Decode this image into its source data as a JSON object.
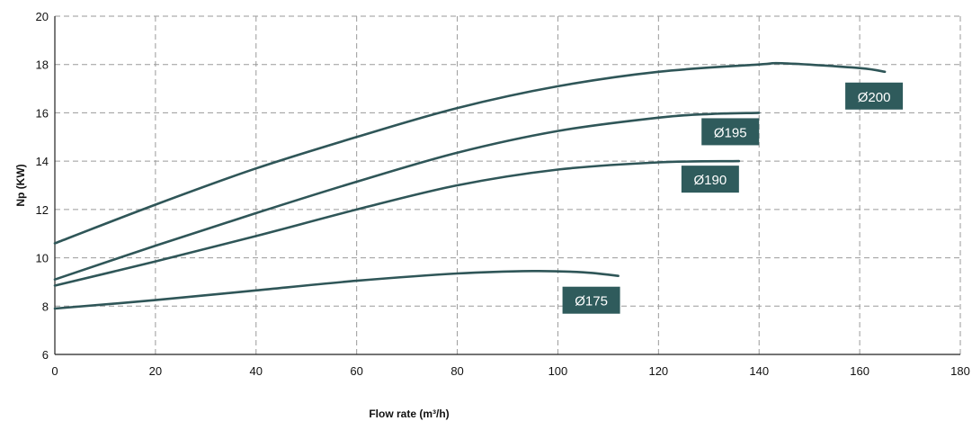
{
  "chart_data": {
    "type": "line",
    "xlabel": "Flow rate (m³/h)",
    "ylabel": "Np (KW)",
    "xlim": [
      0,
      180
    ],
    "ylim": [
      6,
      20
    ],
    "xticks": [
      0,
      20,
      40,
      60,
      80,
      100,
      120,
      140,
      160,
      180
    ],
    "yticks": [
      6,
      8,
      10,
      12,
      14,
      16,
      18,
      20
    ],
    "grid": true,
    "colors": {
      "line": "#2f5658",
      "badge": "#2f5b5c",
      "grid": "#9a9a9a"
    },
    "series": [
      {
        "name": "Ø200",
        "points": [
          [
            0,
            10.6
          ],
          [
            20,
            12.2
          ],
          [
            40,
            13.7
          ],
          [
            60,
            15.0
          ],
          [
            80,
            16.2
          ],
          [
            100,
            17.1
          ],
          [
            120,
            17.7
          ],
          [
            140,
            18.0
          ],
          [
            145,
            18.05
          ],
          [
            160,
            17.85
          ],
          [
            165,
            17.7
          ]
        ]
      },
      {
        "name": "Ø195",
        "points": [
          [
            0,
            9.1
          ],
          [
            20,
            10.5
          ],
          [
            40,
            11.85
          ],
          [
            60,
            13.15
          ],
          [
            80,
            14.35
          ],
          [
            100,
            15.25
          ],
          [
            120,
            15.8
          ],
          [
            130,
            15.95
          ],
          [
            140,
            16.0
          ]
        ]
      },
      {
        "name": "Ø190",
        "points": [
          [
            0,
            8.85
          ],
          [
            20,
            9.85
          ],
          [
            40,
            10.9
          ],
          [
            60,
            12.0
          ],
          [
            80,
            13.0
          ],
          [
            100,
            13.65
          ],
          [
            120,
            13.95
          ],
          [
            136,
            14.0
          ]
        ]
      },
      {
        "name": "Ø175",
        "points": [
          [
            0,
            7.9
          ],
          [
            20,
            8.25
          ],
          [
            40,
            8.65
          ],
          [
            60,
            9.05
          ],
          [
            80,
            9.35
          ],
          [
            95,
            9.45
          ],
          [
            105,
            9.4
          ],
          [
            112,
            9.25
          ]
        ]
      }
    ]
  }
}
